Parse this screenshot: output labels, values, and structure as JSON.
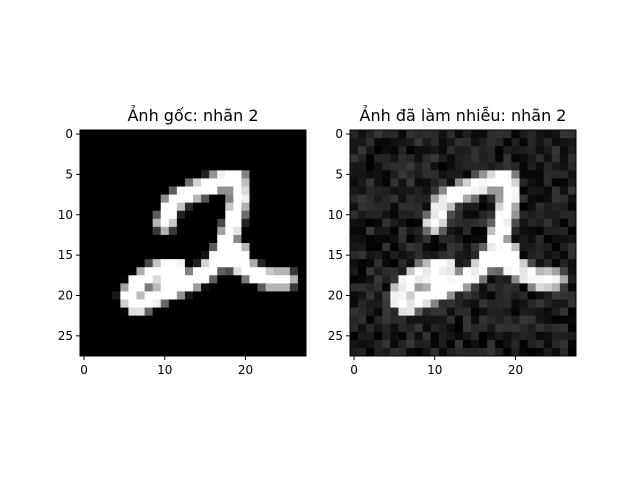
{
  "chart_data": [
    {
      "type": "heatmap",
      "title": "Ảnh gốc: nhãn 2",
      "xlabel": "",
      "ylabel": "",
      "xlim": [
        -0.5,
        27.5
      ],
      "ylim": [
        27.5,
        -0.5
      ],
      "xticks": [
        0,
        10,
        20
      ],
      "yticks": [
        0,
        5,
        10,
        15,
        20,
        25
      ],
      "colormap": "gray",
      "grid": false,
      "noise": false,
      "image": {
        "rows": 28,
        "cols": 28,
        "strokes": [
          [
            [
              10,
              11
            ],
            [
              11,
              8.5
            ],
            [
              13,
              7.3
            ],
            [
              15,
              6.6
            ],
            [
              17,
              5.8
            ],
            [
              19,
              5.6
            ]
          ],
          [
            [
              19,
              5.6
            ],
            [
              19.2,
              8
            ],
            [
              18.6,
              10.5
            ],
            [
              17.8,
              13
            ],
            [
              17,
              15
            ],
            [
              15.5,
              16.8
            ],
            [
              14,
              17.8
            ],
            [
              12,
              18.8
            ],
            [
              10,
              19.6
            ],
            [
              8,
              20.6
            ],
            [
              6.5,
              21.3
            ],
            [
              5.5,
              20.2
            ],
            [
              6.5,
              18.6
            ],
            [
              8.2,
              17.4
            ],
            [
              10,
              16.6
            ],
            [
              11.5,
              16.6
            ],
            [
              11.2,
              17.6
            ],
            [
              10,
              18.4
            ]
          ],
          [
            [
              17,
              15
            ],
            [
              19,
              16
            ],
            [
              21,
              17.2
            ],
            [
              23,
              18
            ],
            [
              25,
              18
            ]
          ],
          [
            [
              17,
              15.5
            ],
            [
              18,
              14.3
            ],
            [
              19.3,
              14.7
            ]
          ]
        ]
      }
    },
    {
      "type": "heatmap",
      "title": "Ảnh đã làm nhiễu: nhãn 2",
      "xlabel": "",
      "ylabel": "",
      "xlim": [
        -0.5,
        27.5
      ],
      "ylim": [
        27.5,
        -0.5
      ],
      "xticks": [
        0,
        10,
        20
      ],
      "yticks": [
        0,
        5,
        10,
        15,
        20,
        25
      ],
      "colormap": "gray",
      "grid": false,
      "noise": true,
      "image": {
        "rows": 28,
        "cols": 28,
        "strokes": [
          [
            [
              10,
              11
            ],
            [
              11,
              8.5
            ],
            [
              13,
              7.3
            ],
            [
              15,
              6.6
            ],
            [
              17,
              5.8
            ],
            [
              19,
              5.6
            ]
          ],
          [
            [
              19,
              5.6
            ],
            [
              19.2,
              8
            ],
            [
              18.6,
              10.5
            ],
            [
              17.8,
              13
            ],
            [
              17,
              15
            ],
            [
              15.5,
              16.8
            ],
            [
              14,
              17.8
            ],
            [
              12,
              18.8
            ],
            [
              10,
              19.6
            ],
            [
              8,
              20.6
            ],
            [
              6.5,
              21.3
            ],
            [
              5.5,
              20.2
            ],
            [
              6.5,
              18.6
            ],
            [
              8.2,
              17.4
            ],
            [
              10,
              16.6
            ],
            [
              11.5,
              16.6
            ],
            [
              11.2,
              17.6
            ],
            [
              10,
              18.4
            ]
          ],
          [
            [
              17,
              15
            ],
            [
              19,
              16
            ],
            [
              21,
              17.2
            ],
            [
              23,
              18
            ],
            [
              25,
              18
            ]
          ],
          [
            [
              17,
              15.5
            ],
            [
              18,
              14.3
            ],
            [
              19.3,
              14.7
            ]
          ]
        ]
      }
    }
  ]
}
